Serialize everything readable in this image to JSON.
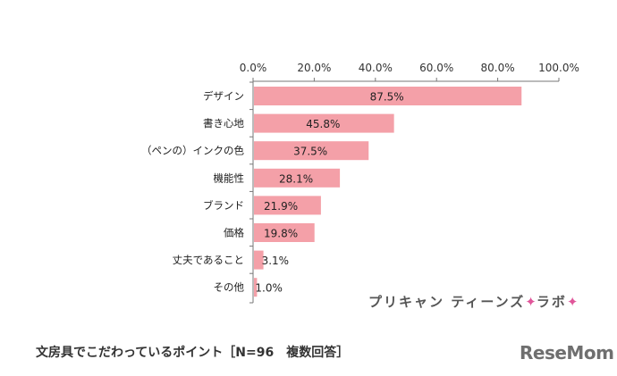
{
  "chart_data": {
    "type": "bar",
    "orientation": "horizontal",
    "categories": [
      "デザイン",
      "書き心地",
      "（ペンの）インクの色",
      "機能性",
      "ブランド",
      "価格",
      "丈夫であること",
      "その他"
    ],
    "values": [
      87.5,
      45.8,
      37.5,
      28.1,
      21.9,
      19.8,
      3.1,
      1.0
    ],
    "data_labels": [
      "87.5%",
      "45.8%",
      "37.5%",
      "28.1%",
      "21.9%",
      "19.8%",
      "3.1%",
      "1.0%"
    ],
    "x_ticks": [
      "0.0%",
      "20.0%",
      "40.0%",
      "60.0%",
      "80.0%",
      "100.0%"
    ],
    "xlim": [
      0,
      100
    ],
    "axis_position": "top",
    "grid": false,
    "bar_color": "#f4a0a8"
  },
  "caption": "文房具でこだわっているポイント［N=96　複数回答］",
  "brand": {
    "text1": "プリキャン ティーンズ",
    "star": "✦",
    "text2": "ラボ",
    "accent_color": "#e0569a"
  },
  "logo": "ReseMom"
}
